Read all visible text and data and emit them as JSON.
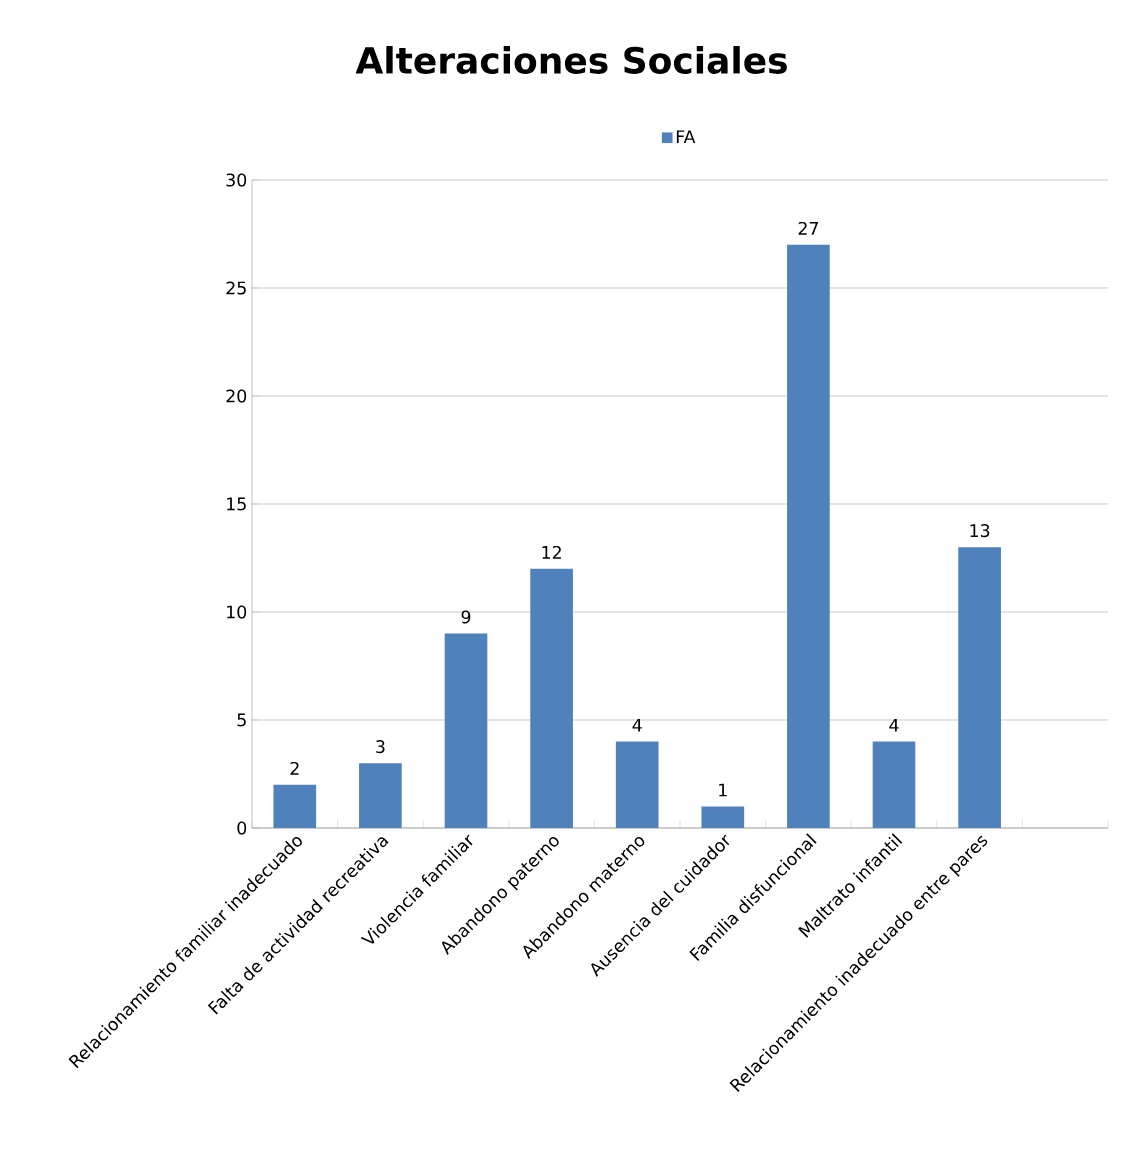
{
  "chart_data": {
    "type": "bar",
    "title": "Alteraciones Sociales",
    "categories": [
      "Relacionamiento familiar inadecuado",
      "Falta de actividad recreativa",
      "Violencia familiar",
      "Abandono paterno",
      "Abandono materno",
      "Ausencia del cuidador",
      "Familia disfuncional",
      "Maltrato infantil",
      "Relacionamiento inadecuado entre pares",
      null
    ],
    "series": [
      {
        "name": "FA",
        "color": "#4f81bd",
        "values": [
          2,
          3,
          9,
          12,
          4,
          1,
          27,
          4,
          13,
          null
        ]
      }
    ],
    "ylim": [
      0,
      30
    ],
    "yticks": [
      0,
      5,
      10,
      15,
      20,
      25,
      30
    ],
    "grid": "y",
    "legend": "top",
    "data_labels": true
  }
}
